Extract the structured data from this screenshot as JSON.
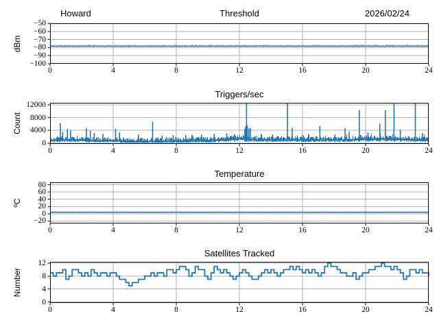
{
  "figure": {
    "background": "#ffffff",
    "line_color": "#1f77b4",
    "grid_color": "#b0b0b0",
    "spine_color": "#000000"
  },
  "chart_data": [
    {
      "id": "threshold",
      "type": "line",
      "title": "Threshold",
      "title_left": "Howard",
      "title_right": "2026/02/24",
      "ylabel": "dBm",
      "xlabel": "",
      "xlim": [
        0,
        24
      ],
      "ylim": [
        -100,
        -50
      ],
      "xticks": [
        0,
        4,
        8,
        12,
        16,
        20,
        24
      ],
      "yticks": [
        -50,
        -60,
        -70,
        -80,
        -90,
        -100
      ],
      "grid": true,
      "legend": "none",
      "line_color": "#1f77b4",
      "series": {
        "kind": "noisy_flat",
        "value": -78.2,
        "half_thickness": 0.7,
        "wander": 0.3,
        "fuzz_up": 1.8,
        "fuzz_prob": 0.28,
        "seed": 11
      },
      "summary": "Receiver threshold steady at about -78 dBm for the full 24 h"
    },
    {
      "id": "triggers",
      "type": "line",
      "title": "Triggers/sec",
      "ylabel": "Count",
      "xlabel": "",
      "xlim": [
        0,
        24
      ],
      "ylim": [
        -250,
        12650
      ],
      "xticks": [
        0,
        4,
        8,
        12,
        16,
        20,
        24
      ],
      "yticks": [
        0,
        4000,
        8000,
        12000
      ],
      "grid": true,
      "legend": "none",
      "line_color": "#1f77b4",
      "series": {
        "kind": "noisy_spiky",
        "baseline_x": [
          0,
          1,
          2,
          3,
          4,
          5,
          6,
          7,
          8,
          9,
          10,
          11,
          12,
          13,
          14,
          15,
          16,
          17,
          18,
          19,
          20,
          21,
          22,
          23,
          24
        ],
        "baseline": [
          1500,
          1700,
          1600,
          1400,
          1500,
          1100,
          1200,
          1100,
          1300,
          1400,
          1500,
          1600,
          2100,
          1700,
          1600,
          1700,
          1600,
          1700,
          1600,
          1700,
          1800,
          1900,
          1800,
          1700,
          1600
        ],
        "jitter": 520,
        "seed": 23,
        "spikes": [
          [
            0.65,
            6300
          ],
          [
            0.8,
            3400
          ],
          [
            1.1,
            4400
          ],
          [
            1.3,
            4000
          ],
          [
            2.3,
            4650
          ],
          [
            2.55,
            3900
          ],
          [
            2.8,
            3200
          ],
          [
            3.35,
            2900
          ],
          [
            4.15,
            4450
          ],
          [
            4.4,
            3400
          ],
          [
            5.6,
            2700
          ],
          [
            6.5,
            6700
          ],
          [
            7.1,
            2400
          ],
          [
            7.8,
            2500
          ],
          [
            8.6,
            2500
          ],
          [
            9.0,
            2600
          ],
          [
            9.6,
            2700
          ],
          [
            10.4,
            2900
          ],
          [
            11.2,
            3000
          ],
          [
            11.7,
            2800
          ],
          [
            12.35,
            4500
          ],
          [
            12.4,
            5200
          ],
          [
            12.45,
            12650
          ],
          [
            12.5,
            5600
          ],
          [
            12.6,
            4600
          ],
          [
            12.7,
            4800
          ],
          [
            13.4,
            2900
          ],
          [
            14.1,
            2700
          ],
          [
            15.05,
            12650
          ],
          [
            15.35,
            4800
          ],
          [
            16.4,
            2900
          ],
          [
            17.1,
            5400
          ],
          [
            18.05,
            2700
          ],
          [
            18.7,
            4700
          ],
          [
            18.95,
            3600
          ],
          [
            19.6,
            10400
          ],
          [
            20.15,
            3300
          ],
          [
            20.9,
            6100
          ],
          [
            21.25,
            10300
          ],
          [
            21.8,
            12650
          ],
          [
            22.2,
            4200
          ],
          [
            23.15,
            12650
          ],
          [
            23.6,
            3100
          ]
        ]
      },
      "summary": "Trigger rate ~1000-2000/sec with intermittent spikes, several reaching the 12000+ top of scale"
    },
    {
      "id": "temperature",
      "type": "line",
      "title": "Temperature",
      "ylabel": "ºC",
      "xlabel": "",
      "xlim": [
        0,
        24
      ],
      "ylim": [
        -27,
        87
      ],
      "xticks": [
        0,
        4,
        8,
        12,
        16,
        20,
        24
      ],
      "yticks": [
        -20,
        0,
        20,
        40,
        60,
        80
      ],
      "grid": true,
      "legend": "none",
      "line_color": "#1f77b4",
      "series": {
        "kind": "noisy_flat",
        "value": 4,
        "half_thickness": 1.6,
        "wander": 0.4,
        "fuzz_up": 0,
        "fuzz_prob": 0,
        "seed": 5
      },
      "summary": "Temperature constant at about 4 ºC for the full 24 h"
    },
    {
      "id": "satellites",
      "type": "step",
      "title": "Satellites Tracked",
      "ylabel": "Number",
      "xlabel": "",
      "xlim": [
        0,
        24
      ],
      "ylim": [
        -0.3,
        12.4
      ],
      "xticks": [
        0,
        4,
        8,
        12,
        16,
        20,
        24
      ],
      "yticks": [
        0,
        4,
        8,
        12
      ],
      "grid": true,
      "legend": "none",
      "line_color": "#1f77b4",
      "series": {
        "kind": "step",
        "x_start": 0,
        "x_end": 24,
        "values": [
          9,
          8,
          9,
          9,
          10,
          7,
          8,
          10,
          10,
          9,
          8,
          9,
          8,
          10,
          9,
          8,
          9,
          9,
          8,
          9,
          9,
          8,
          7,
          7,
          6,
          5,
          6,
          6,
          7,
          7,
          8,
          8,
          9,
          8,
          9,
          9,
          8,
          10,
          10,
          9,
          10,
          11,
          11,
          10,
          8,
          9,
          11,
          10,
          10,
          8,
          7,
          9,
          11,
          10,
          9,
          10,
          9,
          8,
          7,
          8,
          9,
          10,
          9,
          8,
          7,
          7,
          8,
          9,
          10,
          9,
          10,
          9,
          8,
          9,
          10,
          10,
          11,
          10,
          11,
          10,
          9,
          10,
          9,
          10,
          9,
          8,
          9,
          11,
          12,
          11,
          11,
          10,
          9,
          9,
          8,
          8,
          9,
          7,
          8,
          9,
          9,
          10,
          10,
          11,
          11,
          12,
          11,
          11,
          10,
          11,
          10,
          9,
          7,
          8,
          10,
          10,
          9,
          10,
          9,
          9,
          8
        ]
      },
      "summary": "Satellites tracked varies between 5 and 12, mostly 8-10, dipping to 5 near hour 5"
    }
  ]
}
